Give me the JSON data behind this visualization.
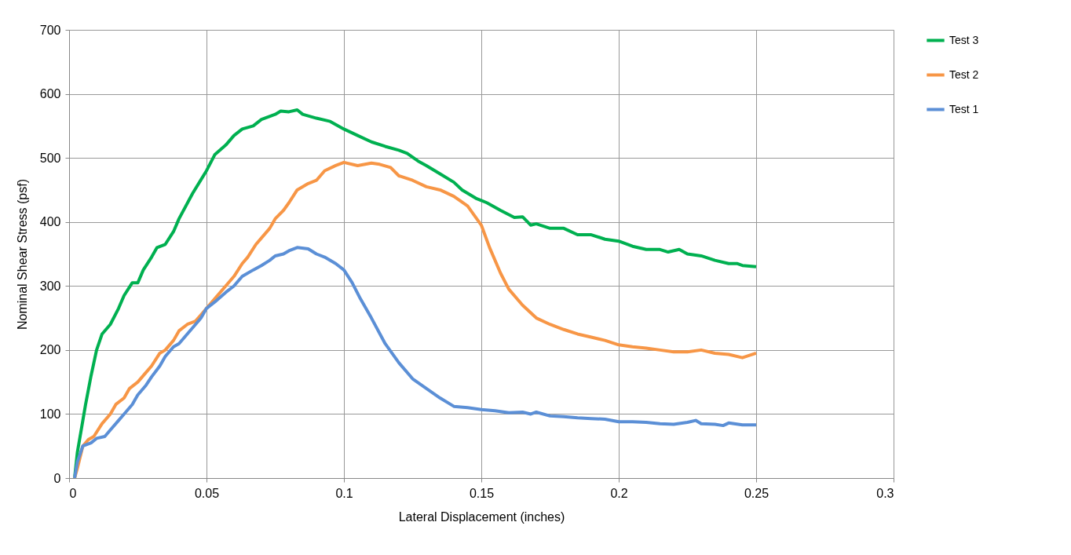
{
  "chart_data": {
    "type": "line",
    "xlabel": "Lateral Displacement (inches)",
    "ylabel": "Nominal Shear Stress (psf)",
    "xlim": [
      0,
      0.3
    ],
    "xticks": [
      0,
      0.05,
      0.1,
      0.15,
      0.2,
      0.25,
      0.3
    ],
    "ylim": [
      0,
      700
    ],
    "yticks": [
      0,
      100,
      200,
      300,
      400,
      500,
      600,
      700
    ],
    "grid": true,
    "legend": "right",
    "marker": "none",
    "line_style": "solid",
    "series": [
      {
        "name": "Test 3",
        "color": "#00b050",
        "x": [
          0.002,
          0.003,
          0.005,
          0.006,
          0.008,
          0.01,
          0.012,
          0.015,
          0.018,
          0.02,
          0.023,
          0.025,
          0.027,
          0.03,
          0.032,
          0.035,
          0.038,
          0.04,
          0.045,
          0.05,
          0.053,
          0.057,
          0.06,
          0.063,
          0.067,
          0.07,
          0.075,
          0.077,
          0.08,
          0.083,
          0.085,
          0.09,
          0.095,
          0.1,
          0.105,
          0.11,
          0.115,
          0.12,
          0.123,
          0.127,
          0.13,
          0.135,
          0.14,
          0.143,
          0.148,
          0.152,
          0.157,
          0.162,
          0.165,
          0.168,
          0.17,
          0.175,
          0.18,
          0.185,
          0.19,
          0.195,
          0.2,
          0.205,
          0.21,
          0.215,
          0.218,
          0.222,
          0.225,
          0.23,
          0.235,
          0.24,
          0.243,
          0.245,
          0.25
        ],
        "values": [
          0,
          40,
          90,
          115,
          160,
          200,
          225,
          240,
          265,
          285,
          305,
          305,
          325,
          345,
          360,
          365,
          385,
          405,
          445,
          480,
          505,
          520,
          535,
          545,
          550,
          560,
          568,
          573,
          572,
          575,
          568,
          562,
          557,
          545,
          535,
          525,
          518,
          512,
          507,
          495,
          488,
          475,
          462,
          450,
          437,
          430,
          418,
          407,
          408,
          395,
          397,
          390,
          390,
          380,
          380,
          373,
          370,
          362,
          357,
          357,
          353,
          357,
          350,
          347,
          340,
          335,
          335,
          332,
          330
        ]
      },
      {
        "name": "Test 2",
        "color": "#f79646",
        "x": [
          0.002,
          0.003,
          0.005,
          0.007,
          0.009,
          0.012,
          0.015,
          0.017,
          0.02,
          0.022,
          0.025,
          0.028,
          0.03,
          0.033,
          0.035,
          0.038,
          0.04,
          0.043,
          0.046,
          0.048,
          0.05,
          0.053,
          0.057,
          0.06,
          0.063,
          0.065,
          0.068,
          0.07,
          0.073,
          0.075,
          0.078,
          0.08,
          0.083,
          0.087,
          0.09,
          0.093,
          0.097,
          0.1,
          0.105,
          0.11,
          0.113,
          0.117,
          0.12,
          0.125,
          0.13,
          0.135,
          0.14,
          0.145,
          0.15,
          0.153,
          0.157,
          0.16,
          0.165,
          0.17,
          0.175,
          0.18,
          0.185,
          0.19,
          0.195,
          0.2,
          0.205,
          0.21,
          0.215,
          0.22,
          0.225,
          0.23,
          0.235,
          0.24,
          0.245,
          0.25
        ],
        "values": [
          0,
          15,
          50,
          60,
          65,
          85,
          100,
          115,
          125,
          140,
          150,
          165,
          175,
          195,
          200,
          215,
          230,
          240,
          245,
          255,
          265,
          280,
          300,
          315,
          335,
          345,
          365,
          375,
          390,
          405,
          418,
          430,
          450,
          460,
          465,
          480,
          488,
          493,
          488,
          492,
          490,
          485,
          472,
          465,
          455,
          450,
          440,
          425,
          395,
          360,
          320,
          295,
          270,
          250,
          240,
          232,
          225,
          220,
          215,
          208,
          205,
          203,
          200,
          197,
          197,
          200,
          195,
          193,
          188,
          195
        ]
      },
      {
        "name": "Test 1",
        "color": "#5b8fd6",
        "x": [
          0.002,
          0.003,
          0.005,
          0.008,
          0.01,
          0.013,
          0.015,
          0.018,
          0.02,
          0.023,
          0.025,
          0.028,
          0.03,
          0.033,
          0.035,
          0.038,
          0.04,
          0.043,
          0.046,
          0.048,
          0.05,
          0.053,
          0.057,
          0.06,
          0.063,
          0.067,
          0.07,
          0.073,
          0.075,
          0.078,
          0.08,
          0.083,
          0.087,
          0.09,
          0.093,
          0.097,
          0.1,
          0.103,
          0.106,
          0.11,
          0.115,
          0.12,
          0.125,
          0.13,
          0.135,
          0.14,
          0.145,
          0.15,
          0.155,
          0.16,
          0.165,
          0.168,
          0.17,
          0.175,
          0.18,
          0.185,
          0.19,
          0.195,
          0.2,
          0.205,
          0.21,
          0.215,
          0.22,
          0.225,
          0.228,
          0.23,
          0.235,
          0.238,
          0.24,
          0.245,
          0.25
        ],
        "values": [
          0,
          25,
          50,
          55,
          62,
          65,
          75,
          90,
          100,
          115,
          130,
          145,
          158,
          175,
          190,
          205,
          210,
          225,
          240,
          250,
          265,
          275,
          290,
          300,
          315,
          325,
          332,
          340,
          347,
          350,
          355,
          360,
          358,
          350,
          345,
          335,
          325,
          305,
          280,
          250,
          210,
          180,
          155,
          140,
          125,
          112,
          110,
          107,
          105,
          102,
          103,
          100,
          103,
          97,
          96,
          94,
          93,
          92,
          88,
          88,
          87,
          85,
          84,
          87,
          90,
          85,
          84,
          82,
          86,
          83,
          83
        ]
      }
    ]
  }
}
